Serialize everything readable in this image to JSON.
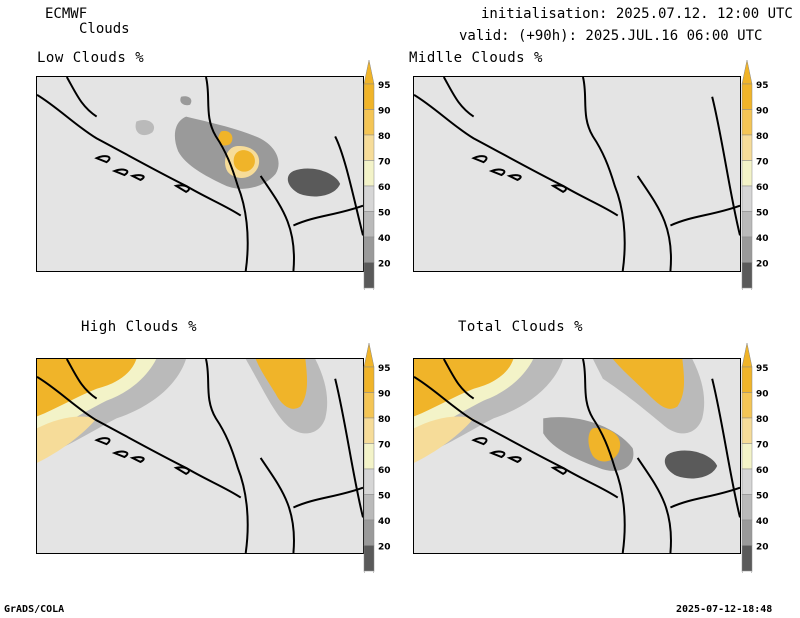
{
  "header": {
    "model": "ECMWF",
    "product": "Clouds",
    "init_label": "initialisation: 2025.07.12. 12:00 UTC",
    "valid_label": "valid: (+90h): 2025.JUL.16 06:00 UTC"
  },
  "panels": [
    {
      "title": "Low Clouds %"
    },
    {
      "title": "Midlle Clouds %"
    },
    {
      "title": "High Clouds %"
    },
    {
      "title": "Total Clouds %"
    }
  ],
  "colorbar": {
    "labels": [
      "95",
      "90",
      "80",
      "70",
      "60",
      "50",
      "40",
      "20"
    ],
    "colors": [
      "#f0b429",
      "#f4c555",
      "#f6dc99",
      "#f3f3c8",
      "#d6d6d6",
      "#bababa",
      "#9a9a9a",
      "#5a5a5a"
    ]
  },
  "footer": {
    "left": "GrADS/COLA",
    "right": "2025-07-12-18:48"
  }
}
